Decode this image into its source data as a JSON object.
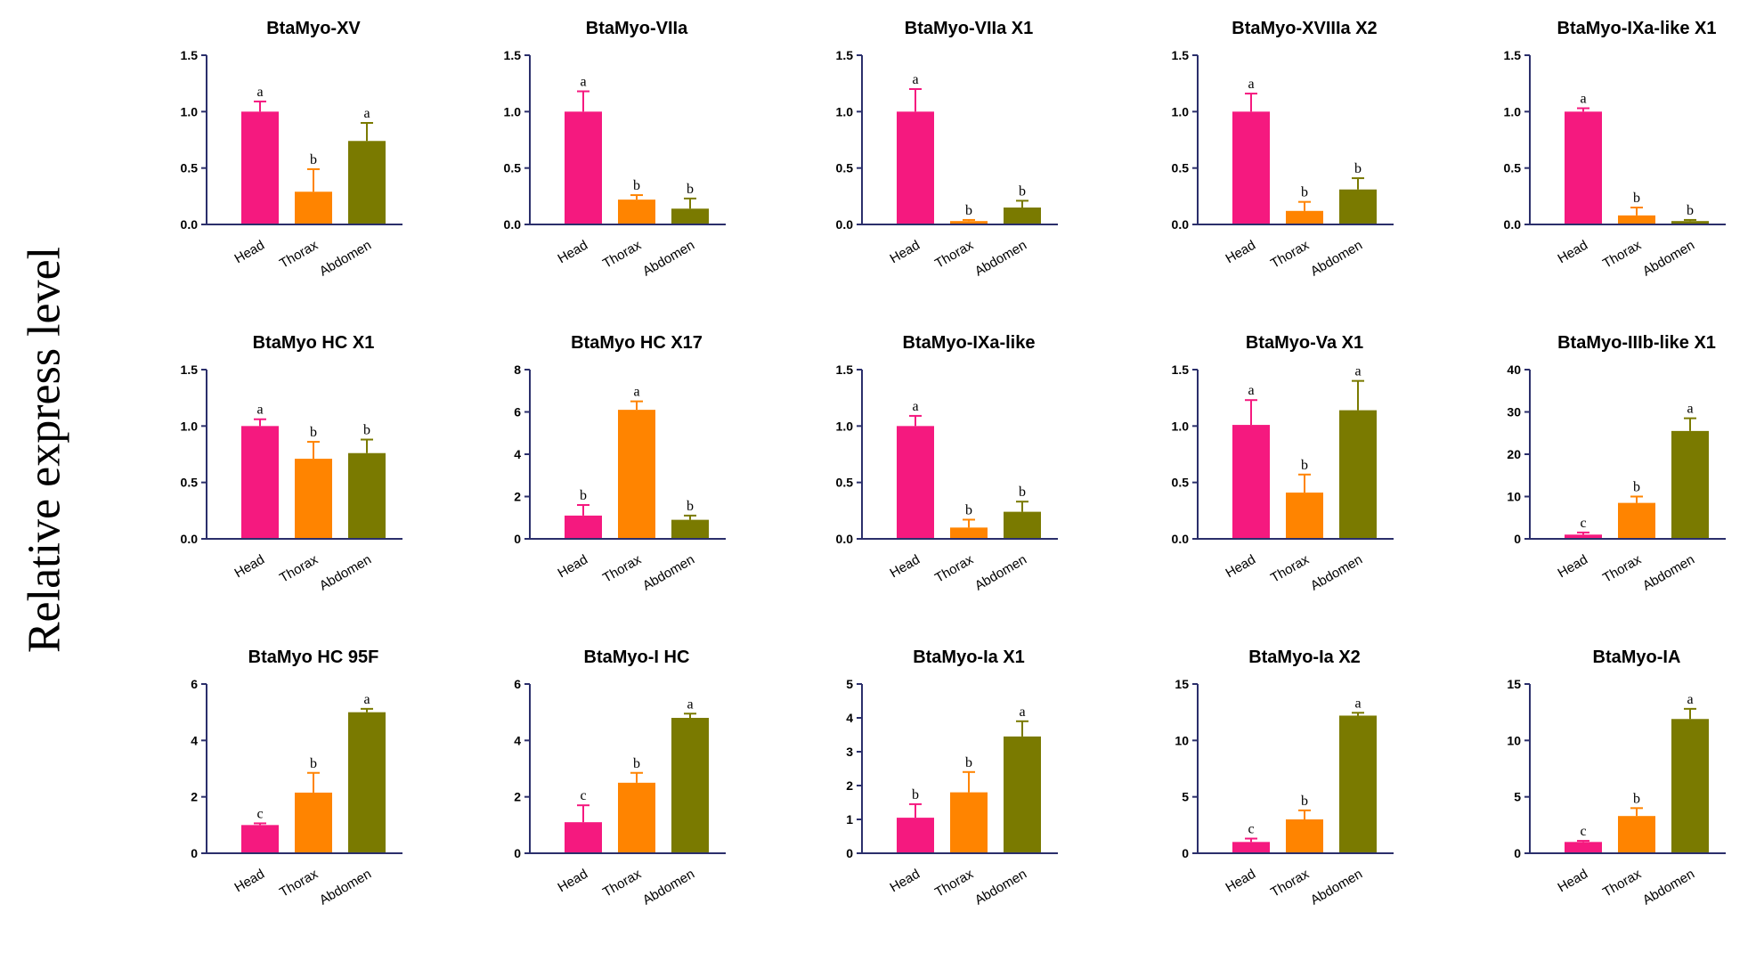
{
  "figure": {
    "ylabel": "Relative express level"
  },
  "colors": {
    "Head": "#F5197F",
    "Thorax": "#FF8400",
    "Abdomen": "#7A7A00",
    "axis": "#2B2F6B"
  },
  "chart_data": [
    {
      "type": "bar",
      "title": "BtaMyo-XV",
      "categories": [
        "Head",
        "Thorax",
        "Abdomen"
      ],
      "values": [
        1.0,
        0.29,
        0.74
      ],
      "errors": [
        0.09,
        0.2,
        0.16
      ],
      "labels": [
        "a",
        "b",
        "a"
      ],
      "ylim": [
        0,
        1.5
      ],
      "yticks": [
        "0.0",
        "0.5",
        "1.0",
        "1.5"
      ]
    },
    {
      "type": "bar",
      "title": "BtaMyo-VIIa",
      "categories": [
        "Head",
        "Thorax",
        "Abdomen"
      ],
      "values": [
        1.0,
        0.22,
        0.14
      ],
      "errors": [
        0.18,
        0.04,
        0.09
      ],
      "labels": [
        "a",
        "b",
        "b"
      ],
      "ylim": [
        0,
        1.5
      ],
      "yticks": [
        "0.0",
        "0.5",
        "1.0",
        "1.5"
      ]
    },
    {
      "type": "bar",
      "title": "BtaMyo-VIIa X1",
      "categories": [
        "Head",
        "Thorax",
        "Abdomen"
      ],
      "values": [
        1.0,
        0.03,
        0.15
      ],
      "errors": [
        0.2,
        0.01,
        0.06
      ],
      "labels": [
        "a",
        "b",
        "b"
      ],
      "ylim": [
        0,
        1.5
      ],
      "yticks": [
        "0.0",
        "0.5",
        "1.0",
        "1.5"
      ]
    },
    {
      "type": "bar",
      "title": "BtaMyo-XVIIIa X2",
      "categories": [
        "Head",
        "Thorax",
        "Abdomen"
      ],
      "values": [
        1.0,
        0.12,
        0.31
      ],
      "errors": [
        0.16,
        0.08,
        0.1
      ],
      "labels": [
        "a",
        "b",
        "b"
      ],
      "ylim": [
        0,
        1.5
      ],
      "yticks": [
        "0.0",
        "0.5",
        "1.0",
        "1.5"
      ]
    },
    {
      "type": "bar",
      "title": "BtaMyo-IXa-like X1",
      "categories": [
        "Head",
        "Thorax",
        "Abdomen"
      ],
      "values": [
        1.0,
        0.08,
        0.03
      ],
      "errors": [
        0.03,
        0.07,
        0.01
      ],
      "labels": [
        "a",
        "b",
        "b"
      ],
      "ylim": [
        0,
        1.5
      ],
      "yticks": [
        "0.0",
        "0.5",
        "1.0",
        "1.5"
      ]
    },
    {
      "type": "bar",
      "title": "BtaMyo HC X1",
      "categories": [
        "Head",
        "Thorax",
        "Abdomen"
      ],
      "values": [
        1.0,
        0.71,
        0.76
      ],
      "errors": [
        0.06,
        0.15,
        0.12
      ],
      "labels": [
        "a",
        "b",
        "b"
      ],
      "ylim": [
        0,
        1.5
      ],
      "yticks": [
        "0.0",
        "0.5",
        "1.0",
        "1.5"
      ]
    },
    {
      "type": "bar",
      "title": "BtaMyo HC X17",
      "categories": [
        "Head",
        "Thorax",
        "Abdomen"
      ],
      "values": [
        1.1,
        6.1,
        0.9
      ],
      "errors": [
        0.5,
        0.4,
        0.2
      ],
      "labels": [
        "b",
        "a",
        "b"
      ],
      "ylim": [
        0,
        8
      ],
      "yticks": [
        "0",
        "2",
        "4",
        "6",
        "8"
      ]
    },
    {
      "type": "bar",
      "title": "BtaMyo-IXa-like",
      "categories": [
        "Head",
        "Thorax",
        "Abdomen"
      ],
      "values": [
        1.0,
        0.1,
        0.24
      ],
      "errors": [
        0.09,
        0.07,
        0.09
      ],
      "labels": [
        "a",
        "b",
        "b"
      ],
      "ylim": [
        0,
        1.5
      ],
      "yticks": [
        "0.0",
        "0.5",
        "1.0",
        "1.5"
      ]
    },
    {
      "type": "bar",
      "title": "BtaMyo-Va X1",
      "categories": [
        "Head",
        "Thorax",
        "Abdomen"
      ],
      "values": [
        1.01,
        0.41,
        1.14
      ],
      "errors": [
        0.22,
        0.16,
        0.26
      ],
      "labels": [
        "a",
        "b",
        "a"
      ],
      "ylim": [
        0,
        1.5
      ],
      "yticks": [
        "0.0",
        "0.5",
        "1.0",
        "1.5"
      ]
    },
    {
      "type": "bar",
      "title": "BtaMyo-IIIb-like X1",
      "categories": [
        "Head",
        "Thorax",
        "Abdomen"
      ],
      "values": [
        1.0,
        8.5,
        25.5
      ],
      "errors": [
        0.5,
        1.5,
        3.0
      ],
      "labels": [
        "c",
        "b",
        "a"
      ],
      "ylim": [
        0,
        40
      ],
      "yticks": [
        "0",
        "10",
        "20",
        "30",
        "40"
      ]
    },
    {
      "type": "bar",
      "title": "BtaMyo HC 95F",
      "categories": [
        "Head",
        "Thorax",
        "Abdomen"
      ],
      "values": [
        1.0,
        2.15,
        5.0
      ],
      "errors": [
        0.06,
        0.7,
        0.12
      ],
      "labels": [
        "c",
        "b",
        "a"
      ],
      "ylim": [
        0,
        6
      ],
      "yticks": [
        "0",
        "2",
        "4",
        "6"
      ]
    },
    {
      "type": "bar",
      "title": "BtaMyo-I HC",
      "categories": [
        "Head",
        "Thorax",
        "Abdomen"
      ],
      "values": [
        1.1,
        2.5,
        4.8
      ],
      "errors": [
        0.6,
        0.35,
        0.15
      ],
      "labels": [
        "c",
        "b",
        "a"
      ],
      "ylim": [
        0,
        6
      ],
      "yticks": [
        "0",
        "2",
        "4",
        "6"
      ]
    },
    {
      "type": "bar",
      "title": "BtaMyo-Ia X1",
      "categories": [
        "Head",
        "Thorax",
        "Abdomen"
      ],
      "values": [
        1.05,
        1.8,
        3.45
      ],
      "errors": [
        0.4,
        0.6,
        0.45
      ],
      "labels": [
        "b",
        "b",
        "a"
      ],
      "ylim": [
        0,
        5
      ],
      "yticks": [
        "0",
        "1",
        "2",
        "3",
        "4",
        "5"
      ]
    },
    {
      "type": "bar",
      "title": "BtaMyo-Ia X2",
      "categories": [
        "Head",
        "Thorax",
        "Abdomen"
      ],
      "values": [
        1.0,
        3.0,
        12.2
      ],
      "errors": [
        0.3,
        0.8,
        0.25
      ],
      "labels": [
        "c",
        "b",
        "a"
      ],
      "ylim": [
        0,
        15
      ],
      "yticks": [
        "0",
        "5",
        "10",
        "15"
      ]
    },
    {
      "type": "bar",
      "title": "BtaMyo-IA",
      "categories": [
        "Head",
        "Thorax",
        "Abdomen"
      ],
      "values": [
        1.0,
        3.3,
        11.9
      ],
      "errors": [
        0.1,
        0.7,
        0.9
      ],
      "labels": [
        "c",
        "b",
        "a"
      ],
      "ylim": [
        0,
        15
      ],
      "yticks": [
        "0",
        "5",
        "10",
        "15"
      ]
    }
  ]
}
